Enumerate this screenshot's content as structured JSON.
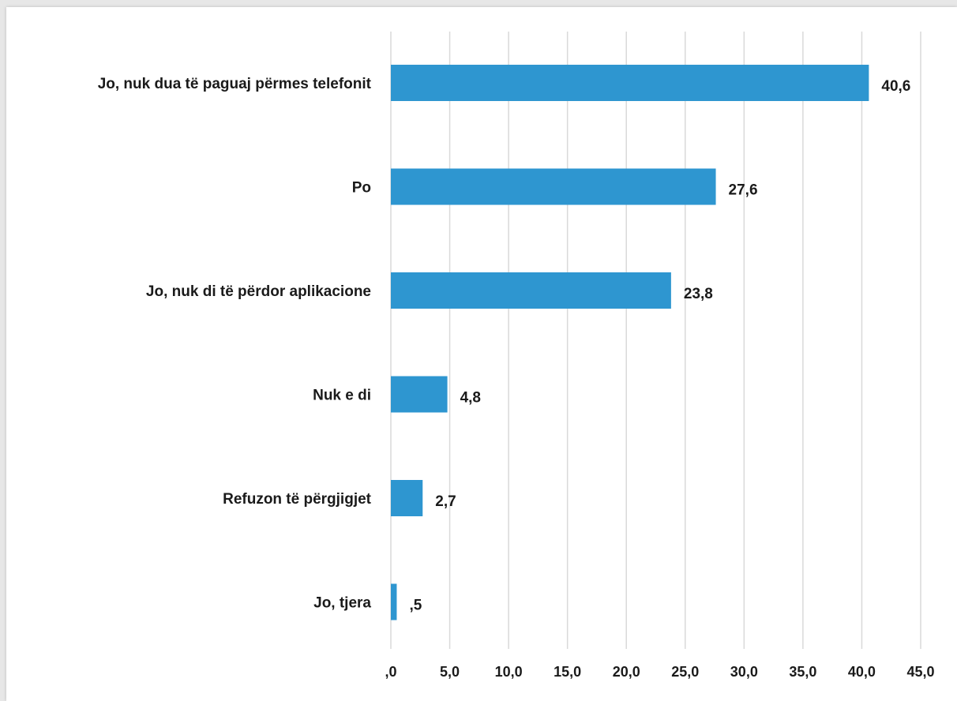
{
  "chart_data": {
    "type": "bar",
    "orientation": "horizontal",
    "categories": [
      "Jo, nuk dua të paguaj përmes telefonit",
      "Po",
      "Jo, nuk di të përdor aplikacione",
      "Nuk e di",
      "Refuzon të përgjigjet",
      "Jo, tjera"
    ],
    "values": [
      40.6,
      27.6,
      23.8,
      4.8,
      2.7,
      0.5
    ],
    "value_labels": [
      "40,6",
      "27,6",
      "23,8",
      "4,8",
      "2,7",
      ",5"
    ],
    "xlim": [
      0,
      45
    ],
    "x_ticks": [
      0,
      5,
      10,
      15,
      20,
      25,
      30,
      35,
      40,
      45
    ],
    "x_tick_labels": [
      ",0",
      "5,0",
      "10,0",
      "15,0",
      "20,0",
      "25,0",
      "30,0",
      "35,0",
      "40,0",
      "45,0"
    ],
    "grid": "vertical",
    "bar_color": "#2e96d0",
    "grid_color": "#d9d9d9",
    "title": "",
    "xlabel": "",
    "ylabel": ""
  }
}
